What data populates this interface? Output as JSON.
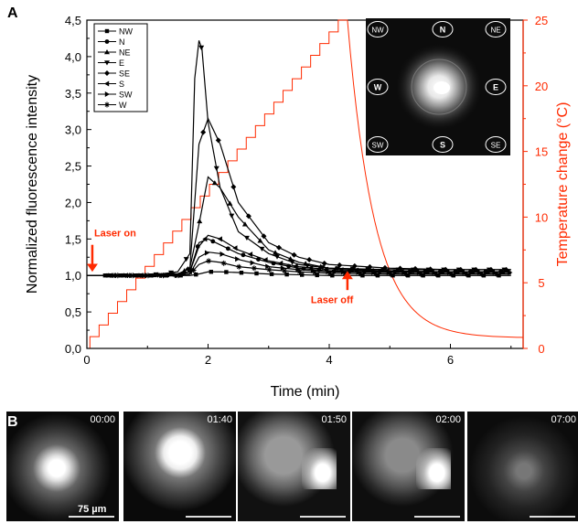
{
  "panel_a_label": "A",
  "panel_b_label": "B",
  "chart_data": {
    "type": "line",
    "xlabel": "Time (min)",
    "ylabel": "Normalized fluorescence intensity",
    "y2label": "Temperature change (°C)",
    "xlim": [
      0,
      7.2
    ],
    "ylim": [
      0,
      4.5
    ],
    "y2lim": [
      0,
      25
    ],
    "x_ticks": [
      "0",
      "2",
      "4",
      "6"
    ],
    "y_ticks": [
      "0,0",
      "0,5",
      "1,0",
      "1,5",
      "2,0",
      "2,5",
      "3,0",
      "3,5",
      "4,0",
      "4,5"
    ],
    "y2_ticks": [
      "0",
      "5",
      "10",
      "15",
      "20",
      "25"
    ],
    "legend_position": "top-left",
    "series": [
      {
        "name": "NW",
        "marker": "square",
        "x": [
          0,
          0.5,
          1,
          1.5,
          1.7,
          1.85,
          2,
          2.2,
          2.5,
          3,
          3.5,
          4,
          5,
          6,
          7
        ],
        "y": [
          1,
          1,
          1,
          1,
          1,
          1.02,
          1.05,
          1.05,
          1.04,
          1.02,
          1.01,
          1,
          1,
          1,
          1
        ]
      },
      {
        "name": "N",
        "marker": "circle",
        "x": [
          0,
          0.5,
          1,
          1.5,
          1.7,
          1.85,
          2,
          2.2,
          2.5,
          3,
          3.5,
          4,
          5,
          6,
          7
        ],
        "y": [
          1,
          1,
          1,
          1,
          1.05,
          1.45,
          1.5,
          1.42,
          1.3,
          1.18,
          1.1,
          1.06,
          1.05,
          1.05,
          1.05
        ]
      },
      {
        "name": "NE",
        "marker": "triangle-up",
        "x": [
          0,
          0.5,
          1,
          1.5,
          1.7,
          1.85,
          2,
          2.2,
          2.5,
          3,
          3.5,
          4,
          5,
          6,
          7
        ],
        "y": [
          1,
          1,
          1,
          1.02,
          1.1,
          1.7,
          2.35,
          2.2,
          1.8,
          1.35,
          1.18,
          1.1,
          1.06,
          1.05,
          1.05
        ]
      },
      {
        "name": "E",
        "marker": "triangle-down",
        "x": [
          0,
          0.5,
          1,
          1.5,
          1.7,
          1.78,
          1.85,
          1.9,
          2,
          2.2,
          2.5,
          3,
          3.5,
          4,
          5,
          6,
          7
        ],
        "y": [
          1,
          1,
          1,
          1.05,
          1.3,
          3.7,
          4.22,
          4.1,
          3.1,
          2.2,
          1.6,
          1.3,
          1.15,
          1.1,
          1.08,
          1.08,
          1.08
        ]
      },
      {
        "name": "SE",
        "marker": "diamond",
        "x": [
          0,
          0.5,
          1,
          1.5,
          1.7,
          1.85,
          2,
          2.2,
          2.5,
          3,
          3.5,
          4,
          5,
          6,
          7
        ],
        "y": [
          1,
          1,
          1,
          1.02,
          1.1,
          2.8,
          3.15,
          2.8,
          2.0,
          1.45,
          1.25,
          1.15,
          1.1,
          1.08,
          1.08
        ]
      },
      {
        "name": "S",
        "marker": "triangle-left",
        "x": [
          0,
          0.5,
          1,
          1.5,
          1.7,
          1.85,
          2,
          2.2,
          2.5,
          3,
          3.5,
          4,
          5,
          6,
          7
        ],
        "y": [
          1,
          1,
          1,
          1,
          1.05,
          1.4,
          1.55,
          1.5,
          1.35,
          1.2,
          1.12,
          1.08,
          1.06,
          1.05,
          1.05
        ]
      },
      {
        "name": "SW",
        "marker": "triangle-right",
        "x": [
          0,
          0.5,
          1,
          1.5,
          1.7,
          1.85,
          2,
          2.2,
          2.5,
          3,
          3.5,
          4,
          5,
          6,
          7
        ],
        "y": [
          1,
          1,
          1,
          1,
          1.02,
          1.25,
          1.32,
          1.3,
          1.22,
          1.12,
          1.08,
          1.05,
          1.04,
          1.04,
          1.04
        ]
      },
      {
        "name": "W",
        "marker": "star",
        "x": [
          0,
          0.5,
          1,
          1.5,
          1.7,
          1.85,
          2,
          2.2,
          2.5,
          3,
          3.5,
          4,
          5,
          6,
          7
        ],
        "y": [
          1,
          1,
          1,
          1,
          1.02,
          1.15,
          1.2,
          1.18,
          1.12,
          1.08,
          1.05,
          1.03,
          1.02,
          1.02,
          1.02
        ]
      }
    ],
    "temperature": {
      "color": "#ff2a00",
      "steps_end_x": 4.3,
      "step_count": 28,
      "peak": 25,
      "decay_tau": 0.45
    },
    "annotations": [
      {
        "text": "Laser on",
        "x": 0.15,
        "color": "#ff2a00"
      },
      {
        "text": "Laser off",
        "x": 4.3,
        "color": "#ff2a00"
      }
    ],
    "inset_labels": [
      "NW",
      "N",
      "NE",
      "W",
      "E",
      "SW",
      "S",
      "SE"
    ]
  },
  "frames": [
    {
      "time": "00:00"
    },
    {
      "time": "01:40"
    },
    {
      "time": "01:50"
    },
    {
      "time": "02:00"
    },
    {
      "time": "07:00"
    }
  ],
  "scale_label": "75 µm"
}
